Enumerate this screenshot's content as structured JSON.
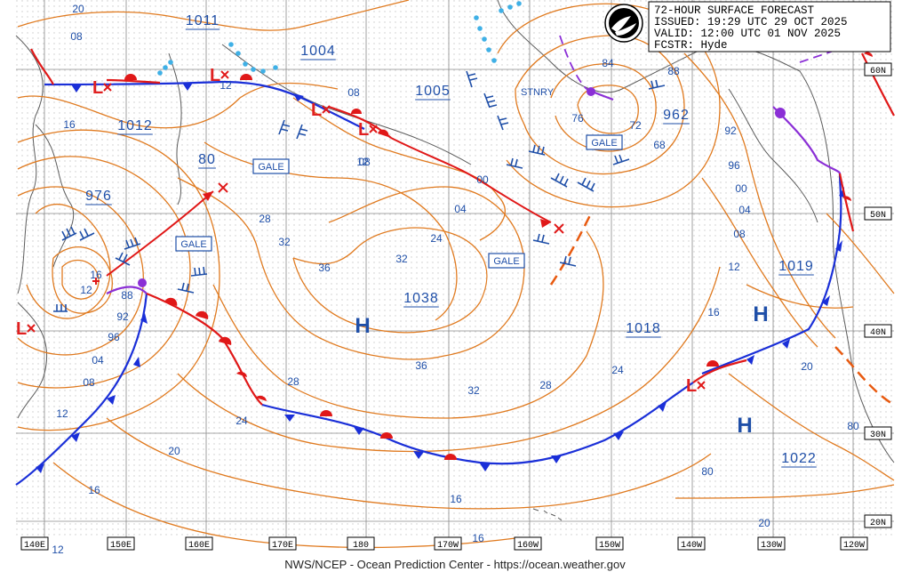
{
  "header": {
    "line1": "72-HOUR SURFACE FORECAST",
    "line2": "ISSUED: 19:29 UTC 29 OCT 2025",
    "line3": "VALID:  12:00 UTC 01 NOV 2025",
    "line4": "FCSTR:  Hyde"
  },
  "footer": "NWS/NCEP - Ocean Prediction Center - https://ocean.weather.gov",
  "longitude_labels": [
    "140E",
    "150E",
    "160E",
    "170E",
    "180",
    "170W",
    "160W",
    "150W",
    "140W",
    "130W",
    "120W"
  ],
  "latitude_labels": [
    "60N",
    "50N",
    "40N",
    "30N",
    "20N"
  ],
  "pressure_centers": [
    "1011",
    "1004",
    "1005",
    "1012",
    "976",
    "80",
    "1038",
    "962",
    "1018",
    "1019",
    "1022"
  ],
  "isobar_labels": [
    "20",
    "08",
    "16",
    "12",
    "08",
    "12",
    "28",
    "32",
    "24",
    "36",
    "32",
    "28",
    "24",
    "36",
    "32",
    "28",
    "24",
    "20",
    "16",
    "20",
    "04",
    "08",
    "12",
    "16",
    "08",
    "12",
    "04",
    "00",
    "96",
    "92",
    "88",
    "84",
    "76",
    "72",
    "68",
    "80",
    "16",
    "20",
    "16",
    "88",
    "92",
    "96",
    "00",
    "04",
    "08",
    "12",
    "80",
    "16",
    "12"
  ],
  "gale_label": "GALE",
  "stnry_label": "STNRY",
  "colors": {
    "isobar": "#e07a1f",
    "cold_front": "#1a2fd8",
    "warm_front": "#e01818",
    "occluded": "#8b2fd6",
    "trough": "#e85a10",
    "text_blue": "#1f4fa8",
    "grid": "#777777",
    "ice": "#3fb0e6"
  },
  "icons": [
    "noaa-logo-icon",
    "low-pressure-icon",
    "high-pressure-icon",
    "wind-barb-icon"
  ]
}
